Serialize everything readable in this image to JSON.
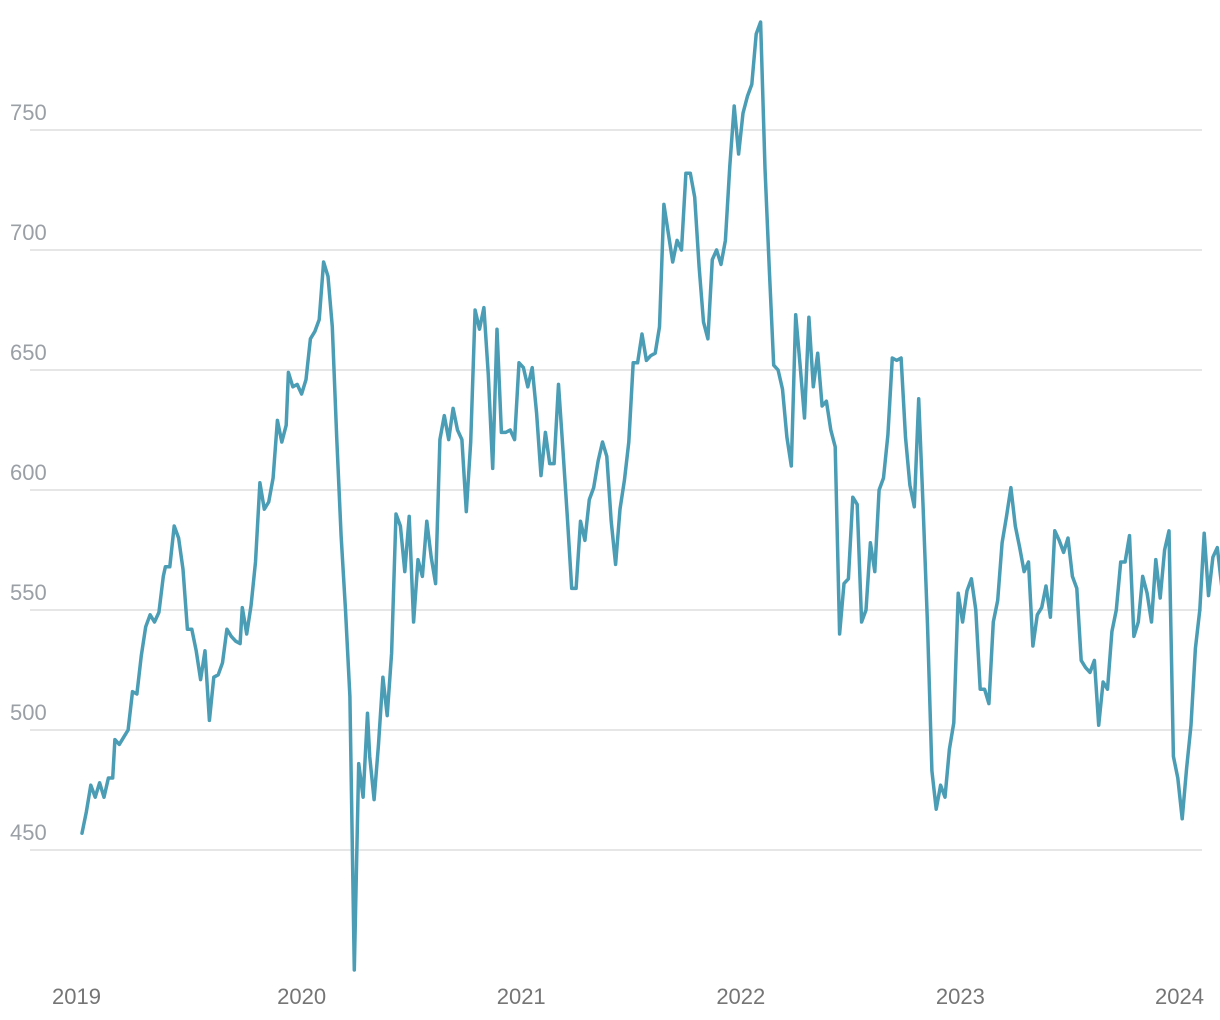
{
  "chart_data": {
    "type": "line",
    "title": "",
    "xlabel": "",
    "ylabel": "",
    "xlim": [
      2019.0,
      2024.0
    ],
    "ylim": [
      400,
      800
    ],
    "grid": true,
    "legend": "none",
    "colors": {
      "line": "#4a9db4",
      "grid": "#dedede",
      "y_tick": "#9aa0a6",
      "x_tick": "#757575"
    },
    "y_ticks": [
      {
        "value": 450,
        "label": "450"
      },
      {
        "value": 500,
        "label": "500"
      },
      {
        "value": 550,
        "label": "550"
      },
      {
        "value": 600,
        "label": "600"
      },
      {
        "value": 650,
        "label": "650"
      },
      {
        "value": 700,
        "label": "700"
      },
      {
        "value": 750,
        "label": "750"
      }
    ],
    "x_ticks": [
      {
        "value": 2019,
        "label": "2019"
      },
      {
        "value": 2020,
        "label": "2020"
      },
      {
        "value": 2021,
        "label": "2021"
      },
      {
        "value": 2022,
        "label": "2022"
      },
      {
        "value": 2023,
        "label": "2023"
      },
      {
        "value": 2024,
        "label": "2024"
      }
    ],
    "series": [
      {
        "points": [
          [
            2019.0,
            457
          ],
          [
            2019.02,
            466
          ],
          [
            2019.04,
            477
          ],
          [
            2019.06,
            472
          ],
          [
            2019.08,
            478
          ],
          [
            2019.1,
            472
          ],
          [
            2019.12,
            480
          ],
          [
            2019.14,
            480
          ],
          [
            2019.15,
            496
          ],
          [
            2019.17,
            494
          ],
          [
            2019.19,
            497
          ],
          [
            2019.21,
            500
          ],
          [
            2019.23,
            516
          ],
          [
            2019.25,
            515
          ],
          [
            2019.27,
            531
          ],
          [
            2019.29,
            543
          ],
          [
            2019.31,
            548
          ],
          [
            2019.33,
            545
          ],
          [
            2019.35,
            549
          ],
          [
            2019.37,
            564
          ],
          [
            2019.38,
            568
          ],
          [
            2019.4,
            568
          ],
          [
            2019.42,
            585
          ],
          [
            2019.44,
            580
          ],
          [
            2019.46,
            567
          ],
          [
            2019.48,
            542
          ],
          [
            2019.5,
            542
          ],
          [
            2019.52,
            533
          ],
          [
            2019.54,
            521
          ],
          [
            2019.56,
            533
          ],
          [
            2019.58,
            504
          ],
          [
            2019.6,
            522
          ],
          [
            2019.62,
            523
          ],
          [
            2019.64,
            528
          ],
          [
            2019.66,
            542
          ],
          [
            2019.68,
            539
          ],
          [
            2019.7,
            537
          ],
          [
            2019.72,
            536
          ],
          [
            2019.73,
            551
          ],
          [
            2019.75,
            540
          ],
          [
            2019.77,
            552
          ],
          [
            2019.79,
            570
          ],
          [
            2019.81,
            603
          ],
          [
            2019.83,
            592
          ],
          [
            2019.85,
            595
          ],
          [
            2019.87,
            605
          ],
          [
            2019.89,
            629
          ],
          [
            2019.91,
            620
          ],
          [
            2019.93,
            627
          ],
          [
            2019.94,
            649
          ],
          [
            2019.96,
            643
          ],
          [
            2019.98,
            644
          ],
          [
            2020.0,
            640
          ],
          [
            2020.02,
            646
          ],
          [
            2020.04,
            663
          ],
          [
            2020.06,
            666
          ],
          [
            2020.08,
            671
          ],
          [
            2020.1,
            695
          ],
          [
            2020.12,
            689
          ],
          [
            2020.14,
            668
          ],
          [
            2020.16,
            622
          ],
          [
            2020.18,
            581
          ],
          [
            2020.2,
            550
          ],
          [
            2020.22,
            514
          ],
          [
            2020.24,
            400
          ],
          [
            2020.26,
            486
          ],
          [
            2020.28,
            472
          ],
          [
            2020.3,
            507
          ],
          [
            2020.31,
            489
          ],
          [
            2020.33,
            471
          ],
          [
            2020.35,
            494
          ],
          [
            2020.37,
            522
          ],
          [
            2020.39,
            506
          ],
          [
            2020.41,
            532
          ],
          [
            2020.43,
            590
          ],
          [
            2020.45,
            585
          ],
          [
            2020.47,
            566
          ],
          [
            2020.49,
            589
          ],
          [
            2020.51,
            545
          ],
          [
            2020.53,
            571
          ],
          [
            2020.55,
            564
          ],
          [
            2020.57,
            587
          ],
          [
            2020.59,
            572
          ],
          [
            2020.61,
            561
          ],
          [
            2020.63,
            621
          ],
          [
            2020.65,
            631
          ],
          [
            2020.67,
            621
          ],
          [
            2020.69,
            634
          ],
          [
            2020.71,
            625
          ],
          [
            2020.73,
            621
          ],
          [
            2020.75,
            591
          ],
          [
            2020.77,
            620
          ],
          [
            2020.79,
            675
          ],
          [
            2020.81,
            667
          ],
          [
            2020.83,
            676
          ],
          [
            2020.85,
            648
          ],
          [
            2020.87,
            609
          ],
          [
            2020.89,
            667
          ],
          [
            2020.91,
            624
          ],
          [
            2020.93,
            624
          ],
          [
            2020.95,
            625
          ],
          [
            2020.97,
            621
          ],
          [
            2020.99,
            653
          ],
          [
            2021.01,
            651
          ],
          [
            2021.03,
            643
          ],
          [
            2021.05,
            651
          ],
          [
            2021.07,
            632
          ],
          [
            2021.09,
            606
          ],
          [
            2021.11,
            624
          ],
          [
            2021.13,
            611
          ],
          [
            2021.15,
            611
          ],
          [
            2021.17,
            644
          ],
          [
            2021.19,
            617
          ],
          [
            2021.21,
            589
          ],
          [
            2021.23,
            559
          ],
          [
            2021.25,
            559
          ],
          [
            2021.27,
            587
          ],
          [
            2021.29,
            579
          ],
          [
            2021.31,
            596
          ],
          [
            2021.33,
            601
          ],
          [
            2021.35,
            612
          ],
          [
            2021.37,
            620
          ],
          [
            2021.39,
            614
          ],
          [
            2021.41,
            587
          ],
          [
            2021.43,
            569
          ],
          [
            2021.45,
            592
          ],
          [
            2021.47,
            604
          ],
          [
            2021.49,
            620
          ],
          [
            2021.51,
            653
          ],
          [
            2021.53,
            653
          ],
          [
            2021.55,
            665
          ],
          [
            2021.57,
            654
          ],
          [
            2021.59,
            656
          ],
          [
            2021.61,
            657
          ],
          [
            2021.63,
            668
          ],
          [
            2021.65,
            719
          ],
          [
            2021.67,
            707
          ],
          [
            2021.69,
            695
          ],
          [
            2021.71,
            704
          ],
          [
            2021.73,
            700
          ],
          [
            2021.75,
            732
          ],
          [
            2021.77,
            732
          ],
          [
            2021.79,
            722
          ],
          [
            2021.81,
            693
          ],
          [
            2021.83,
            670
          ],
          [
            2021.85,
            663
          ],
          [
            2021.87,
            696
          ],
          [
            2021.89,
            700
          ],
          [
            2021.91,
            694
          ],
          [
            2021.93,
            704
          ],
          [
            2021.95,
            735
          ],
          [
            2021.97,
            760
          ],
          [
            2021.99,
            740
          ],
          [
            2022.01,
            757
          ],
          [
            2022.03,
            764
          ],
          [
            2022.05,
            769
          ],
          [
            2022.07,
            790
          ],
          [
            2022.09,
            795
          ],
          [
            2022.11,
            734
          ],
          [
            2022.13,
            692
          ],
          [
            2022.15,
            652
          ],
          [
            2022.17,
            650
          ],
          [
            2022.19,
            642
          ],
          [
            2022.21,
            622
          ],
          [
            2022.23,
            610
          ],
          [
            2022.25,
            673
          ],
          [
            2022.27,
            652
          ],
          [
            2022.29,
            630
          ],
          [
            2022.31,
            672
          ],
          [
            2022.33,
            643
          ],
          [
            2022.35,
            657
          ],
          [
            2022.37,
            635
          ],
          [
            2022.39,
            637
          ],
          [
            2022.41,
            625
          ],
          [
            2022.43,
            618
          ],
          [
            2022.45,
            540
          ],
          [
            2022.47,
            561
          ],
          [
            2022.49,
            563
          ],
          [
            2022.51,
            597
          ],
          [
            2022.53,
            594
          ],
          [
            2022.55,
            545
          ],
          [
            2022.57,
            550
          ],
          [
            2022.59,
            578
          ],
          [
            2022.61,
            566
          ],
          [
            2022.63,
            600
          ],
          [
            2022.65,
            605
          ],
          [
            2022.67,
            623
          ],
          [
            2022.69,
            655
          ],
          [
            2022.71,
            654
          ],
          [
            2022.73,
            655
          ],
          [
            2022.75,
            622
          ],
          [
            2022.77,
            602
          ],
          [
            2022.79,
            593
          ],
          [
            2022.81,
            638
          ],
          [
            2022.83,
            593
          ],
          [
            2022.85,
            544
          ],
          [
            2022.87,
            483
          ],
          [
            2022.89,
            467
          ],
          [
            2022.91,
            477
          ],
          [
            2022.93,
            472
          ],
          [
            2022.95,
            492
          ],
          [
            2022.97,
            503
          ],
          [
            2022.99,
            557
          ],
          [
            2023.01,
            545
          ],
          [
            2023.03,
            558
          ],
          [
            2023.05,
            563
          ],
          [
            2023.07,
            550
          ],
          [
            2023.09,
            517
          ],
          [
            2023.11,
            517
          ],
          [
            2023.13,
            511
          ],
          [
            2023.15,
            545
          ],
          [
            2023.17,
            554
          ],
          [
            2023.19,
            578
          ],
          [
            2023.21,
            589
          ],
          [
            2023.23,
            601
          ],
          [
            2023.25,
            585
          ],
          [
            2023.27,
            576
          ],
          [
            2023.29,
            566
          ],
          [
            2023.31,
            570
          ],
          [
            2023.33,
            535
          ],
          [
            2023.35,
            548
          ],
          [
            2023.37,
            551
          ],
          [
            2023.39,
            560
          ],
          [
            2023.41,
            547
          ],
          [
            2023.43,
            583
          ],
          [
            2023.45,
            579
          ],
          [
            2023.47,
            574
          ],
          [
            2023.49,
            580
          ],
          [
            2023.51,
            564
          ],
          [
            2023.53,
            559
          ],
          [
            2023.55,
            529
          ],
          [
            2023.57,
            526
          ],
          [
            2023.59,
            524
          ],
          [
            2023.61,
            529
          ],
          [
            2023.63,
            502
          ],
          [
            2023.65,
            520
          ],
          [
            2023.67,
            517
          ],
          [
            2023.69,
            541
          ],
          [
            2023.71,
            550
          ],
          [
            2023.73,
            570
          ],
          [
            2023.75,
            570
          ],
          [
            2023.77,
            581
          ],
          [
            2023.79,
            539
          ],
          [
            2023.81,
            545
          ],
          [
            2023.83,
            564
          ],
          [
            2023.85,
            557
          ],
          [
            2023.87,
            545
          ],
          [
            2023.89,
            571
          ],
          [
            2023.91,
            555
          ],
          [
            2023.93,
            575
          ],
          [
            2023.95,
            583
          ],
          [
            2023.97,
            489
          ],
          [
            2023.99,
            480
          ],
          [
            2024.01,
            463
          ],
          [
            2024.03,
            484
          ],
          [
            2024.05,
            502
          ],
          [
            2024.07,
            534
          ],
          [
            2024.09,
            550
          ],
          [
            2024.11,
            582
          ],
          [
            2024.13,
            556
          ],
          [
            2024.15,
            572
          ],
          [
            2024.17,
            576
          ],
          [
            2024.19,
            560
          ]
        ]
      }
    ]
  }
}
